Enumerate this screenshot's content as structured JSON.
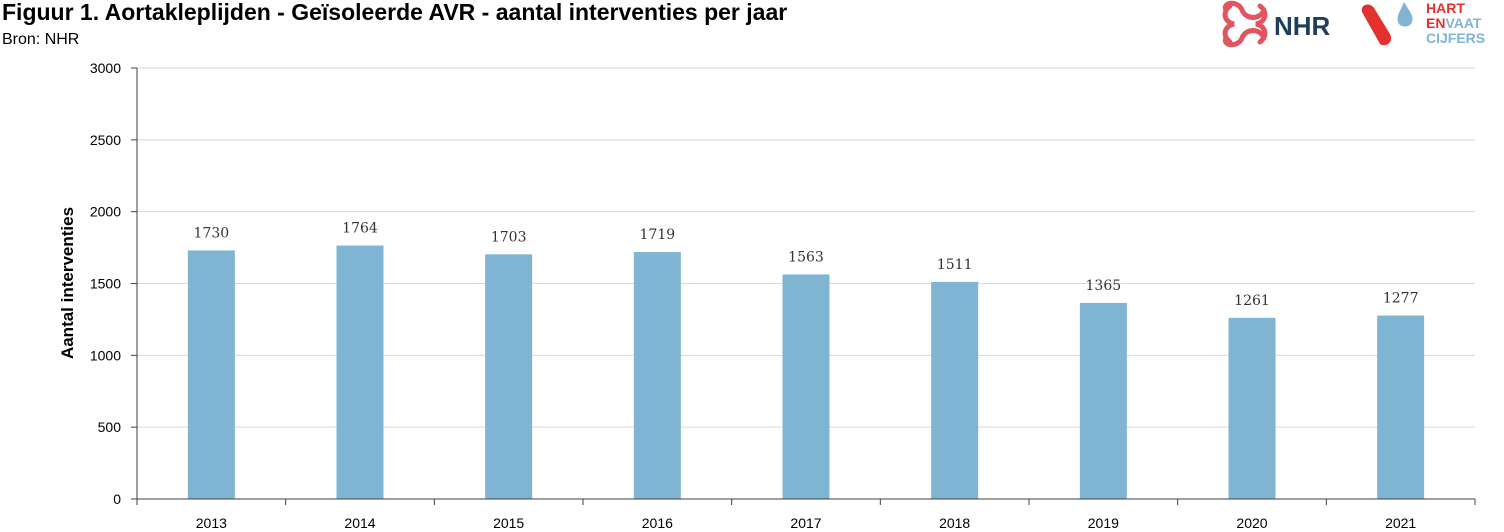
{
  "header": {
    "title": "Figuur 1. Aortakleplijden - Geïsoleerde AVR - aantal interventies per jaar",
    "source": "Bron: NHR"
  },
  "logos": {
    "nhr_text": "NHR",
    "hev_line1": "HART",
    "hev_line2a": "EN",
    "hev_line2b": "VAAT",
    "hev_line3": "CIJFERS"
  },
  "colors": {
    "bar": "#7fb5d3",
    "grid": "#d9d9d9",
    "axis": "#404040",
    "nhr_red": "#e05560",
    "nhr_navy": "#1f3d5c",
    "hev_red": "#e2312f",
    "hev_blue": "#7fb5d3"
  },
  "chart_data": {
    "type": "bar",
    "title": "Figuur 1. Aortakleplijden - Geïsoleerde AVR - aantal interventies per jaar",
    "xlabel": "",
    "ylabel": "Aantal  interventies",
    "categories": [
      "2013",
      "2014",
      "2015",
      "2016",
      "2017",
      "2018",
      "2019",
      "2020",
      "2021"
    ],
    "values": [
      1730,
      1764,
      1703,
      1719,
      1563,
      1511,
      1365,
      1261,
      1277
    ],
    "ylim": [
      0,
      3000
    ],
    "yticks": [
      0,
      500,
      1000,
      1500,
      2000,
      2500,
      3000
    ],
    "grid": true,
    "legend": "none"
  }
}
